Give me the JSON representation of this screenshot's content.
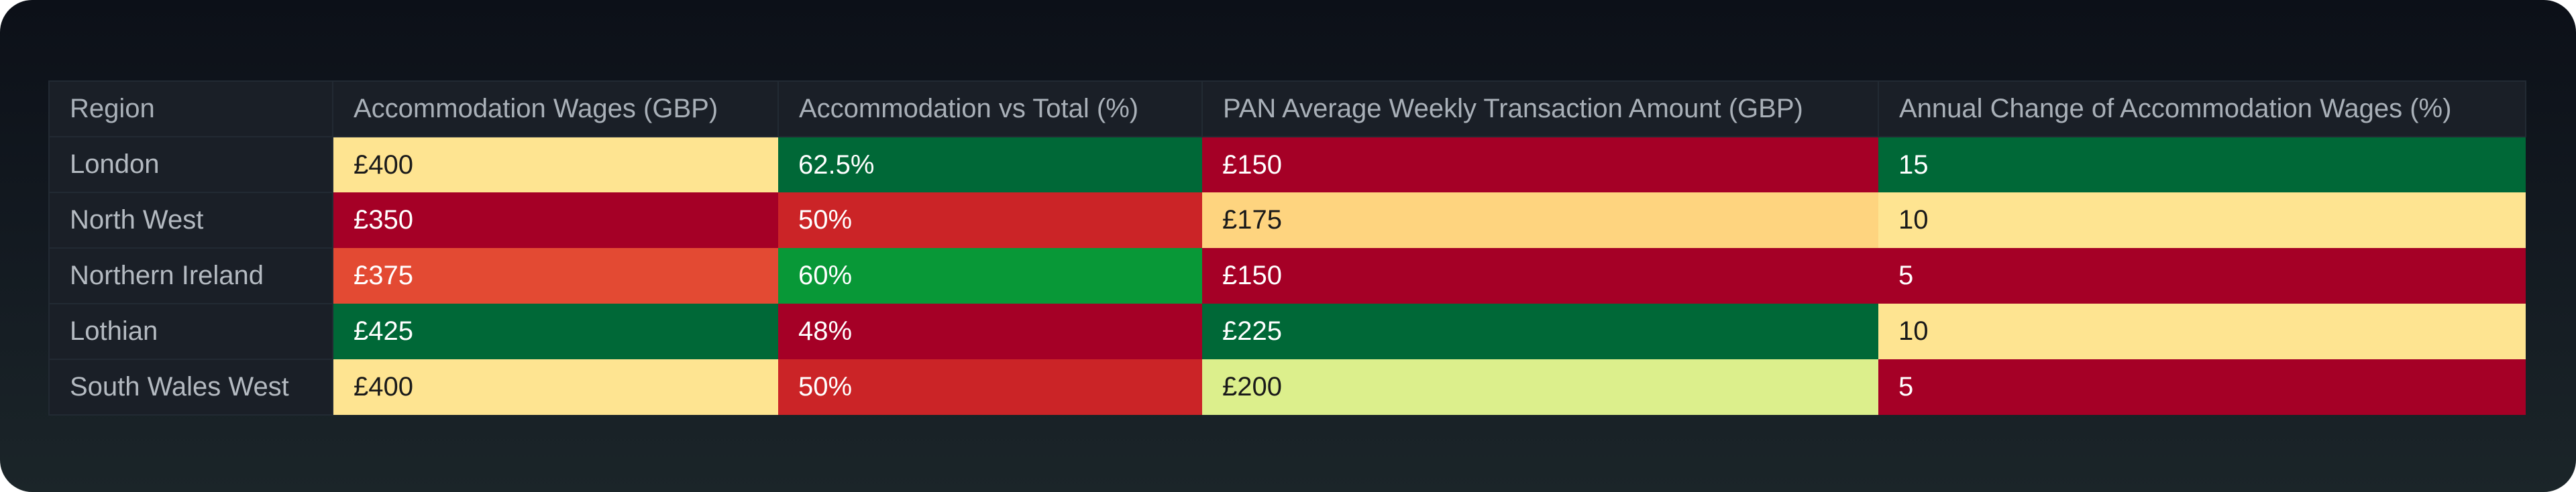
{
  "chart_data": {
    "type": "table",
    "columns": [
      "Region",
      "Accommodation Wages (GBP)",
      "Accommodation vs Total (%)",
      "PAN Average Weekly Transaction Amount (GBP)",
      "Annual Change of Accommodation Wages (%)"
    ],
    "rows": [
      {
        "region": "London",
        "cells": [
          {
            "text": "£400",
            "value": 400,
            "bg": "#fee491",
            "fg": "#1a1a1a"
          },
          {
            "text": "62.5%",
            "value": 62.5,
            "bg": "#006837",
            "fg": "#ffffff"
          },
          {
            "text": "£150",
            "value": 150,
            "bg": "#a50026",
            "fg": "#ffffff"
          },
          {
            "text": "15",
            "value": 15,
            "bg": "#006837",
            "fg": "#ffffff"
          }
        ]
      },
      {
        "region": "North West",
        "cells": [
          {
            "text": "£350",
            "value": 350,
            "bg": "#a50026",
            "fg": "#ffffff"
          },
          {
            "text": "50%",
            "value": 50,
            "bg": "#cb2427",
            "fg": "#ffffff"
          },
          {
            "text": "£175",
            "value": 175,
            "bg": "#fed47f",
            "fg": "#1a1a1a"
          },
          {
            "text": "10",
            "value": 10,
            "bg": "#fee491",
            "fg": "#1a1a1a"
          }
        ]
      },
      {
        "region": "Northern Ireland",
        "cells": [
          {
            "text": "£375",
            "value": 375,
            "bg": "#e34a33",
            "fg": "#ffffff"
          },
          {
            "text": "60%",
            "value": 60,
            "bg": "#089837",
            "fg": "#ffffff"
          },
          {
            "text": "£150",
            "value": 150,
            "bg": "#a50026",
            "fg": "#ffffff"
          },
          {
            "text": "5",
            "value": 5,
            "bg": "#a50026",
            "fg": "#ffffff"
          }
        ]
      },
      {
        "region": "Lothian",
        "cells": [
          {
            "text": "£425",
            "value": 425,
            "bg": "#006837",
            "fg": "#ffffff"
          },
          {
            "text": "48%",
            "value": 48,
            "bg": "#a50026",
            "fg": "#ffffff"
          },
          {
            "text": "£225",
            "value": 225,
            "bg": "#006837",
            "fg": "#ffffff"
          },
          {
            "text": "10",
            "value": 10,
            "bg": "#fee491",
            "fg": "#1a1a1a"
          }
        ]
      },
      {
        "region": "South Wales West",
        "cells": [
          {
            "text": "£400",
            "value": 400,
            "bg": "#fee491",
            "fg": "#1a1a1a"
          },
          {
            "text": "50%",
            "value": 50,
            "bg": "#cb2427",
            "fg": "#ffffff"
          },
          {
            "text": "£200",
            "value": 200,
            "bg": "#dcef8c",
            "fg": "#1a1a1a"
          },
          {
            "text": "5",
            "value": 5,
            "bg": "#a50026",
            "fg": "#ffffff"
          }
        ]
      }
    ],
    "colors": {
      "header_bg": "#1a1f27",
      "header_text": "#a9b0b8",
      "region_bg": "#1a1f27",
      "region_text": "#b4bac1",
      "background": "#0c1018"
    }
  }
}
